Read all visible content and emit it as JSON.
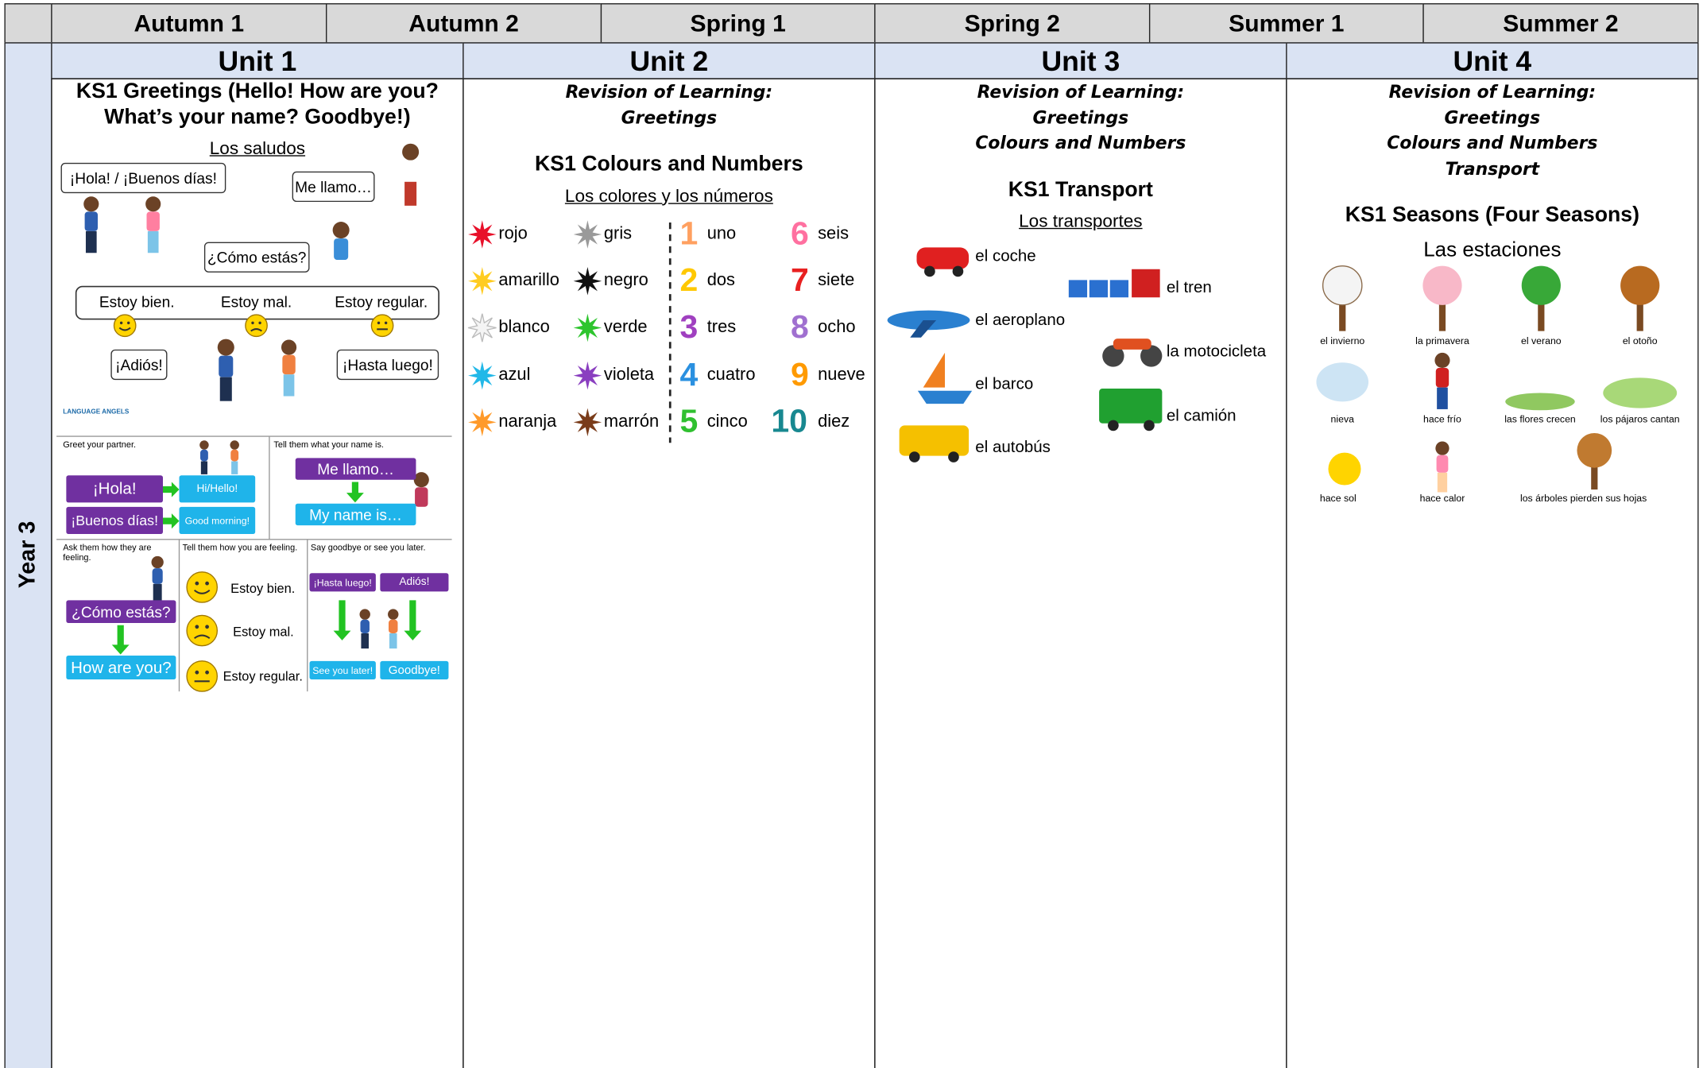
{
  "header": {
    "terms": [
      "Autumn 1",
      "Autumn 2",
      "Spring 1",
      "Spring 2",
      "Summer 1",
      "Summer 2"
    ]
  },
  "year_label": "Year 3",
  "units": [
    {
      "title": "Unit 1",
      "heading": [
        "KS1 Greetings (Hello! How are you?",
        "What’s your name? Goodbye!)"
      ],
      "subheading": "Los saludos",
      "scene": {
        "labels": [
          "¡Hola! / ¡Buenos días!",
          "Me llamo…",
          "¿Cómo estás?",
          "Estoy bien.",
          "Estoy mal.",
          "Estoy regular.",
          "¡Adiós!",
          "¡Hasta luego!"
        ],
        "logo": "LANGUAGE ANGELS"
      },
      "worksheet": {
        "steps": [
          "Greet your partner.",
          "Tell them what your name is.",
          "Ask them how they are feeling.",
          "Tell them how you are feeling.",
          "Say goodbye or see you later."
        ],
        "labels": [
          "¡Hola!",
          "Hi/Hello!",
          "¡Buenos días!",
          "Good morning!",
          "Me llamo…",
          "My name is…",
          "¿Cómo estás?",
          "How are you?",
          "Estoy bien.",
          "Estoy mal.",
          "Estoy regular.",
          "¡Hasta luego!",
          "Adiós!",
          "See you later!",
          "Goodbye!"
        ]
      }
    },
    {
      "title": "Unit 2",
      "revision": [
        "Revision of Learning:",
        "Greetings"
      ],
      "heading": [
        "KS1 Colours and Numbers"
      ],
      "subheading": "Los colores y los números",
      "colours": [
        "rojo",
        "amarillo",
        "blanco",
        "azul",
        "naranja",
        "gris",
        "negro",
        "verde",
        "violeta",
        "marrón"
      ],
      "numbers": [
        {
          "numeral": "1",
          "word": "uno"
        },
        {
          "numeral": "2",
          "word": "dos"
        },
        {
          "numeral": "3",
          "word": "tres"
        },
        {
          "numeral": "4",
          "word": "cuatro"
        },
        {
          "numeral": "5",
          "word": "cinco"
        },
        {
          "numeral": "6",
          "word": "seis"
        },
        {
          "numeral": "7",
          "word": "siete"
        },
        {
          "numeral": "8",
          "word": "ocho"
        },
        {
          "numeral": "9",
          "word": "nueve"
        },
        {
          "numeral": "10",
          "word": "diez"
        }
      ]
    },
    {
      "title": "Unit 3",
      "revision": [
        "Revision of Learning:",
        "Greetings",
        "Colours and Numbers"
      ],
      "heading": [
        "KS1 Transport"
      ],
      "subheading": "Los transportes",
      "transport": [
        "el coche",
        "el tren",
        "el aeroplano",
        "la motocicleta",
        "el barco",
        "el camión",
        "el autobús"
      ]
    },
    {
      "title": "Unit 4",
      "revision": [
        "Revision of Learning:",
        "Greetings",
        "Colours and Numbers",
        "Transport"
      ],
      "heading": [
        "KS1 Seasons (Four Seasons)"
      ],
      "subheading": "Las estaciones",
      "seasons": [
        "el invierno",
        "la primavera",
        "el verano",
        "el otoño",
        "nieva",
        "hace frío",
        "las flores crecen",
        "los pájaros cantan",
        "hace sol",
        "hace calor",
        "los árboles pierden sus hojas"
      ]
    }
  ]
}
